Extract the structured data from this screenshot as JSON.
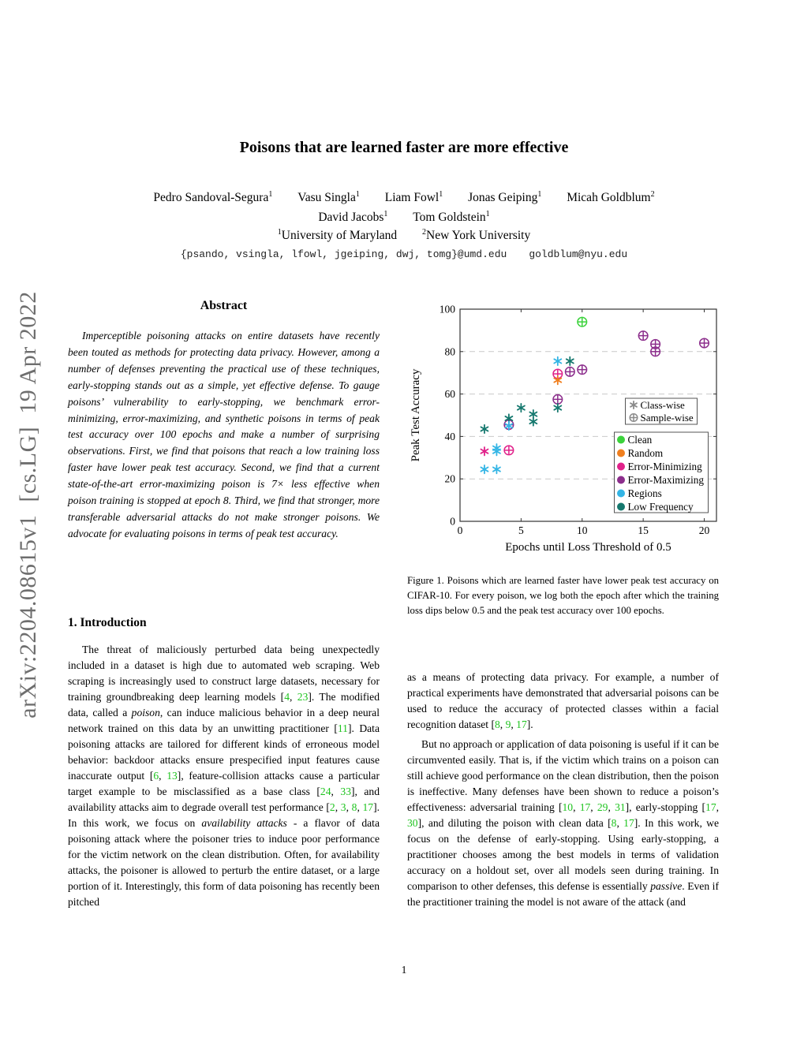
{
  "arxiv_watermark": "arXiv:2204.08615v1  [cs.LG]  19 Apr 2022",
  "colors": {
    "citation": "#1DC31D",
    "watermark": "#6E6E6E",
    "grid": "#C9C9C9",
    "axis": "#333333",
    "legend_marker_gray": "#8A8A8A"
  },
  "header": {
    "title": "Poisons that are learned faster are more effective",
    "authors_line1": [
      {
        "name": "Pedro Sandoval-Segura",
        "sup": "1"
      },
      {
        "name": "Vasu Singla",
        "sup": "1"
      },
      {
        "name": "Liam Fowl",
        "sup": "1"
      },
      {
        "name": "Jonas Geiping",
        "sup": "1"
      },
      {
        "name": "Micah Goldblum",
        "sup": "2"
      }
    ],
    "authors_line2": [
      {
        "name": "David Jacobs",
        "sup": "1"
      },
      {
        "name": "Tom Goldstein",
        "sup": "1"
      }
    ],
    "affiliations": [
      {
        "sup": "1",
        "name": "University of Maryland"
      },
      {
        "sup": "2",
        "name": "New York University"
      }
    ],
    "emails": [
      "{psando, vsingla, lfowl, jgeiping, dwj, tomg}@umd.edu",
      "goldblum@nyu.edu"
    ]
  },
  "abstract": {
    "heading": "Abstract",
    "text": "Imperceptible poisoning attacks on entire datasets have recently been touted as methods for protecting data privacy. However, among a number of defenses preventing the practical use of these techniques, early-stopping stands out as a simple, yet effective defense. To gauge poisons’ vulnerability to early-stopping, we benchmark error-minimizing, error-maximizing, and synthetic poisons in terms of peak test accuracy over 100 epochs and make a number of surprising observations. First, we find that poisons that reach a low training loss faster have lower peak test accuracy. Second, we find that a current state-of-the-art error-maximizing poison is 7× less effective when poison training is stopped at epoch 8. Third, we find that stronger, more transferable adversarial attacks do not make stronger poisons. We advocate for evaluating poisons in terms of peak test accuracy."
  },
  "sections": {
    "intro_heading": "1. Introduction"
  },
  "left_column": {
    "intro_paragraph": [
      {
        "t": "The threat of maliciously perturbed data being unexpectedly included in a dataset is high due to automated web scraping.  Web scraping is increasingly used to construct large datasets, necessary for training groundbreaking deep learning models ["
      },
      {
        "t": "4",
        "k": "cite"
      },
      {
        "t": ", "
      },
      {
        "t": "23",
        "k": "cite"
      },
      {
        "t": "].  The modified data, called a "
      },
      {
        "t": "poison",
        "k": "it"
      },
      {
        "t": ", can induce malicious behavior in a deep neural network trained on this data by an unwitting practitioner ["
      },
      {
        "t": "11",
        "k": "cite"
      },
      {
        "t": "]. Data poisoning attacks are tailored for different kinds of erroneous model behavior:  backdoor attacks ensure prespecified input features cause inaccurate output ["
      },
      {
        "t": "6",
        "k": "cite"
      },
      {
        "t": ", "
      },
      {
        "t": "13",
        "k": "cite"
      },
      {
        "t": "], feature-collision attacks cause a particular target example to be misclassified as a base class ["
      },
      {
        "t": "24",
        "k": "cite"
      },
      {
        "t": ", "
      },
      {
        "t": "33",
        "k": "cite"
      },
      {
        "t": "], and availability attacks aim to degrade overall test performance ["
      },
      {
        "t": "2",
        "k": "cite"
      },
      {
        "t": ", "
      },
      {
        "t": "3",
        "k": "cite"
      },
      {
        "t": ", "
      },
      {
        "t": "8",
        "k": "cite"
      },
      {
        "t": ", "
      },
      {
        "t": "17",
        "k": "cite"
      },
      {
        "t": "].  In this work, we focus on "
      },
      {
        "t": "availability attacks",
        "k": "it"
      },
      {
        "t": " - a flavor of data poisoning attack where the poisoner tries to induce poor performance for the victim network on the clean distribution.  Often, for availability attacks, the poisoner is allowed to perturb the entire dataset, or a large portion of it.  Interestingly, this form of data poisoning has recently been pitched"
      }
    ]
  },
  "right_column": {
    "para1": [
      {
        "t": "as a means of protecting data privacy.  For example, a number of practical experiments have demonstrated that adversarial poisons can be used to reduce the accuracy of protected classes within a facial recognition dataset ["
      },
      {
        "t": "8",
        "k": "cite"
      },
      {
        "t": ", "
      },
      {
        "t": "9",
        "k": "cite"
      },
      {
        "t": ", "
      },
      {
        "t": "17",
        "k": "cite"
      },
      {
        "t": "]."
      }
    ],
    "para2": [
      {
        "t": "But no approach or application of data poisoning is useful if it can be circumvented easily.  That is, if the victim which trains on a poison can still achieve good performance on the clean distribution, then the poison is ineffective. Many defenses have been shown to reduce a poison’s effectiveness: adversarial training ["
      },
      {
        "t": "10",
        "k": "cite"
      },
      {
        "t": ", "
      },
      {
        "t": "17",
        "k": "cite"
      },
      {
        "t": ", "
      },
      {
        "t": "29",
        "k": "cite"
      },
      {
        "t": ", "
      },
      {
        "t": "31",
        "k": "cite"
      },
      {
        "t": "], early-stopping ["
      },
      {
        "t": "17",
        "k": "cite"
      },
      {
        "t": ", "
      },
      {
        "t": "30",
        "k": "cite"
      },
      {
        "t": "], and diluting the poison with clean data ["
      },
      {
        "t": "8",
        "k": "cite"
      },
      {
        "t": ", "
      },
      {
        "t": "17",
        "k": "cite"
      },
      {
        "t": "].  In this work, we focus on the defense of early-stopping.  Using early-stopping, a practitioner chooses among the best models in terms of validation accuracy on a holdout set, over all models seen during training.  In comparison to other defenses, this defense is essentially "
      },
      {
        "t": "passive",
        "k": "it"
      },
      {
        "t": ".  Even if the practitioner training the model is not aware of the attack (and"
      }
    ]
  },
  "figure": {
    "caption": "Figure 1.  Poisons which are learned faster have lower peak test accuracy on CIFAR-10.  For every poison, we log both the epoch after which the training loss dips below 0.5 and the peak test accuracy over 100 epochs."
  },
  "chart_data": {
    "type": "scatter",
    "title": "",
    "xlabel": "Epochs until Loss Threshold of 0.5",
    "ylabel": "Peak Test Accuracy",
    "xlim": [
      0,
      21
    ],
    "ylim": [
      0,
      100
    ],
    "xticks": [
      0,
      5,
      10,
      15,
      20
    ],
    "yticks": [
      0,
      20,
      40,
      60,
      80,
      100
    ],
    "grid": "horizontal-dashed",
    "marker_legend": [
      {
        "marker": "class",
        "label": "Class-wise"
      },
      {
        "marker": "sample",
        "label": "Sample-wise"
      }
    ],
    "color_legend": [
      {
        "label": "Clean",
        "color": "#3BD23B"
      },
      {
        "label": "Random",
        "color": "#F07F1E"
      },
      {
        "label": "Error-Minimizing",
        "color": "#E0218A"
      },
      {
        "label": "Error-Maximizing",
        "color": "#8C2E8C"
      },
      {
        "label": "Regions",
        "color": "#33B5E5"
      },
      {
        "label": "Low Frequency",
        "color": "#15786E"
      }
    ],
    "points": [
      {
        "x": 4,
        "y": 45.5,
        "poison": "Error-Maximizing",
        "marker": "sample"
      },
      {
        "x": 4,
        "y": 33.5,
        "poison": "Error-Minimizing",
        "marker": "sample"
      },
      {
        "x": 8,
        "y": 69.5,
        "poison": "Error-Minimizing",
        "marker": "sample"
      },
      {
        "x": 8,
        "y": 57.5,
        "poison": "Error-Maximizing",
        "marker": "sample"
      },
      {
        "x": 9,
        "y": 70.5,
        "poison": "Error-Maximizing",
        "marker": "sample"
      },
      {
        "x": 10,
        "y": 71.5,
        "poison": "Error-Maximizing",
        "marker": "sample"
      },
      {
        "x": 10,
        "y": 94,
        "poison": "Clean",
        "marker": "sample"
      },
      {
        "x": 15,
        "y": 87.5,
        "poison": "Error-Maximizing",
        "marker": "sample"
      },
      {
        "x": 16,
        "y": 83.5,
        "poison": "Error-Maximizing",
        "marker": "sample"
      },
      {
        "x": 16,
        "y": 80,
        "poison": "Error-Maximizing",
        "marker": "sample"
      },
      {
        "x": 20,
        "y": 84,
        "poison": "Error-Maximizing",
        "marker": "sample"
      },
      {
        "x": 2,
        "y": 43.5,
        "poison": "Low Frequency",
        "marker": "class"
      },
      {
        "x": 4,
        "y": 48.5,
        "poison": "Low Frequency",
        "marker": "class"
      },
      {
        "x": 5,
        "y": 53.5,
        "poison": "Low Frequency",
        "marker": "class"
      },
      {
        "x": 6,
        "y": 50.5,
        "poison": "Low Frequency",
        "marker": "class"
      },
      {
        "x": 6,
        "y": 47,
        "poison": "Low Frequency",
        "marker": "class"
      },
      {
        "x": 8,
        "y": 53.5,
        "poison": "Low Frequency",
        "marker": "class"
      },
      {
        "x": 9,
        "y": 75.5,
        "poison": "Low Frequency",
        "marker": "class"
      },
      {
        "x": 2,
        "y": 33,
        "poison": "Error-Minimizing",
        "marker": "class"
      },
      {
        "x": 2,
        "y": 24.5,
        "poison": "Regions",
        "marker": "class"
      },
      {
        "x": 3,
        "y": 34.5,
        "poison": "Regions",
        "marker": "class"
      },
      {
        "x": 3,
        "y": 33,
        "poison": "Regions",
        "marker": "class"
      },
      {
        "x": 3,
        "y": 24.5,
        "poison": "Regions",
        "marker": "class"
      },
      {
        "x": 4,
        "y": 45,
        "poison": "Regions",
        "marker": "class"
      },
      {
        "x": 8,
        "y": 75.5,
        "poison": "Regions",
        "marker": "class"
      },
      {
        "x": 8,
        "y": 66.5,
        "poison": "Random",
        "marker": "class"
      }
    ]
  },
  "page_number": "1"
}
